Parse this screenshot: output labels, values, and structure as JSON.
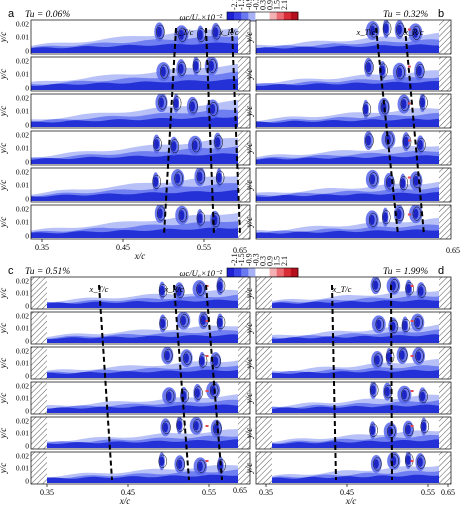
{
  "panels": [
    {
      "letter": "a",
      "tu": "Tu = 0.06%",
      "markers": [
        "x_T/c",
        "x_R/c"
      ],
      "strip_left": false,
      "strip_right": true
    },
    {
      "letter": "b",
      "tu": "Tu = 0.32%",
      "markers": [
        "x_T/c",
        "x_R/c"
      ],
      "strip_left": false,
      "strip_right": true
    },
    {
      "letter": "c",
      "tu": "Tu = 0.51%",
      "markers": [
        "x_T/c",
        "x_R/c"
      ],
      "strip_left": true,
      "strip_right": true
    },
    {
      "letter": "d",
      "tu": "Tu = 1.99%",
      "markers": [
        "x_T/c"
      ],
      "strip_left": true,
      "strip_right": true
    }
  ],
  "colorbar": {
    "label": "ωc/U₀×10⁻²",
    "ticks": [
      "-2.1",
      "-1.5",
      "-0.9",
      "-0.3",
      "0.3",
      "0.9",
      "1.5",
      "2.1"
    ],
    "colors": [
      "#1d1fd2",
      "#3a44e8",
      "#6a78f0",
      "#a7b1f6",
      "#ffffff",
      "#ffffff",
      "#f4b0b4",
      "#ec6b72",
      "#d82c36",
      "#b40f1c"
    ]
  },
  "axes": {
    "y_label": "y/c",
    "y_ticks": [
      "0.02",
      "0.01",
      "0"
    ],
    "x_label": "x/c",
    "x_ticks": [
      "0.35",
      "0.45",
      "0.55",
      "0.65"
    ]
  }
}
